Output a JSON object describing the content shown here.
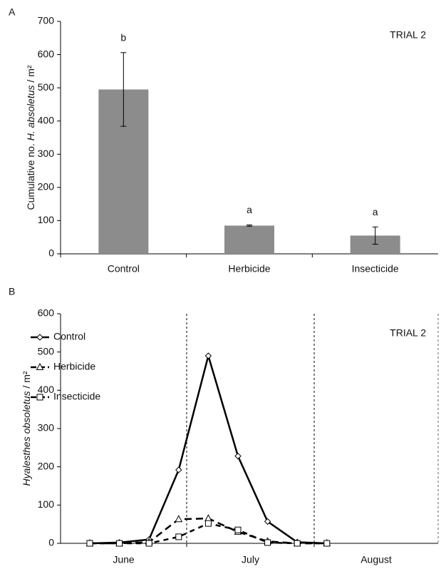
{
  "chart_data": [
    {
      "type": "bar",
      "panel": "A",
      "annotation": "TRIAL 2",
      "ylabel": [
        {
          "text": "Cumulative no. "
        },
        {
          "text": "H. absoletus",
          "italic": true
        },
        {
          "text": " / m²"
        }
      ],
      "categories": [
        "Control",
        "Herbicide",
        "Insecticide"
      ],
      "values": [
        495,
        85,
        55
      ],
      "errors": [
        111,
        2,
        26
      ],
      "letters": [
        "b",
        "a",
        "a"
      ],
      "color": "#8c8c8c",
      "ylim": [
        0,
        700
      ],
      "yticks": [
        0,
        100,
        200,
        300,
        400,
        500,
        600,
        700
      ]
    },
    {
      "type": "line",
      "panel": "B",
      "annotation": "TRIAL 2",
      "ylabel": [
        {
          "text": "Hyalesthes obsoletus",
          "italic": true
        },
        {
          "text": " / m²"
        }
      ],
      "categories": [
        null,
        null,
        null,
        null,
        null,
        null,
        null,
        null,
        null
      ],
      "month_labels": [
        "June",
        "July",
        "August"
      ],
      "series": [
        {
          "name": "Control",
          "color": "#000",
          "marker": "diamond",
          "dashed": false,
          "values": [
            0,
            2,
            10,
            192,
            490,
            228,
            57,
            3,
            0
          ]
        },
        {
          "name": "Herbicide",
          "color": "#000",
          "marker": "triangle",
          "dashed": true,
          "values": [
            0,
            0,
            3,
            63,
            65,
            30,
            5,
            0,
            0
          ]
        },
        {
          "name": "Insecticide",
          "color": "#000",
          "marker": "square",
          "dashed": true,
          "values": [
            0,
            0,
            0,
            17,
            52,
            35,
            2,
            0,
            0
          ]
        }
      ],
      "ylim": [
        0,
        600
      ],
      "yticks": [
        0,
        100,
        200,
        300,
        400,
        500,
        600
      ]
    }
  ]
}
